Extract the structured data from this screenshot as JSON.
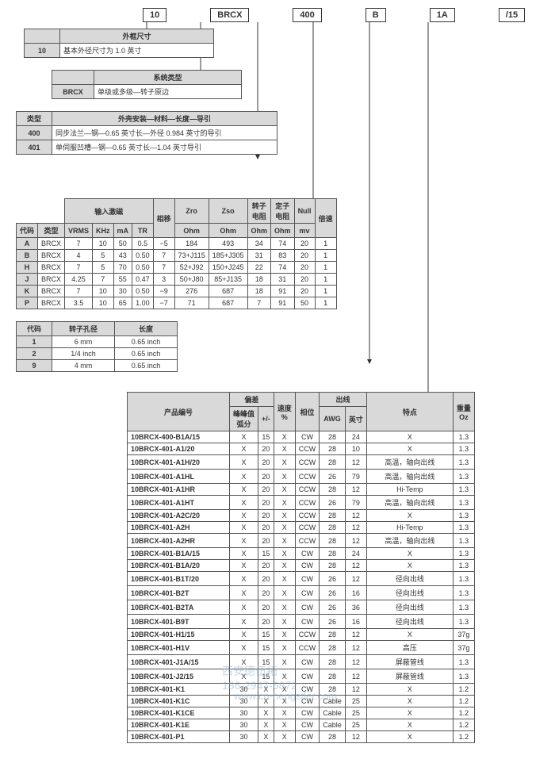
{
  "codes": [
    "10",
    "BRCX",
    "400",
    "B",
    "1A",
    "/15"
  ],
  "t1": {
    "title": "外框尺寸",
    "rows": [
      [
        "10",
        "基本外径尺寸为 1.0 英寸"
      ]
    ]
  },
  "t2": {
    "title": "系统类型",
    "rows": [
      [
        "BRCX",
        "单级或多级—转子原边"
      ]
    ]
  },
  "t3": {
    "title": "外壳安装—材料—长度—导引",
    "rows": [
      [
        "类型",
        ""
      ],
      [
        "400",
        "同步法兰—钢—0.65 英寸长—外径 0.984 英寸的导引"
      ],
      [
        "401",
        "单伺服凹槽—钢—0.65 英寸长—1.04 英寸导引"
      ]
    ]
  },
  "t4": {
    "title": "输入激磁",
    "cols": [
      "代码",
      "类型",
      "VRMS",
      "KHz",
      "mA",
      "TR",
      "相移",
      "Zro Ohm",
      "Zso Ohm",
      "转子电阻 Ohm",
      "定子电阻 Ohm",
      "Null mv",
      "倍速"
    ],
    "rows": [
      [
        "A",
        "BRCX",
        "7",
        "10",
        "50",
        "0.5",
        "−5",
        "184",
        "493",
        "34",
        "74",
        "20",
        "1"
      ],
      [
        "B",
        "BRCX",
        "4",
        "5",
        "43",
        "0.50",
        "7",
        "73+J115",
        "185+J305",
        "31",
        "83",
        "20",
        "1"
      ],
      [
        "H",
        "BRCX",
        "7",
        "5",
        "70",
        "0.50",
        "7",
        "52+J92",
        "150+J245",
        "22",
        "74",
        "20",
        "1"
      ],
      [
        "J",
        "BRCX",
        "4.25",
        "7",
        "55",
        "0.47",
        "3",
        "50+J80",
        "85+J135",
        "18",
        "31",
        "20",
        "1"
      ],
      [
        "K",
        "BRCX",
        "7",
        "10",
        "30",
        "0.50",
        "−9",
        "276",
        "687",
        "18",
        "91",
        "20",
        "1"
      ],
      [
        "P",
        "BRCX",
        "3.5",
        "10",
        "65",
        "1.00",
        "−7",
        "71",
        "687",
        "7",
        "91",
        "50",
        "1"
      ]
    ]
  },
  "t5": {
    "cols": [
      "代码",
      "转子孔径",
      "长度"
    ],
    "rows": [
      [
        "1",
        "6 mm",
        "0.65 inch"
      ],
      [
        "2",
        "1/4 inch",
        "0.65 inch"
      ],
      [
        "9",
        "4 mm",
        "0.65 inch"
      ]
    ]
  },
  "t6": {
    "title": "偏差",
    "cols": [
      "产品编号",
      "峰峰值 弧分",
      "+/-",
      "速度 %",
      "相位",
      "AWG",
      "出线 英寸",
      "特点",
      "重量 Oz"
    ],
    "rows": [
      [
        "10BRCX-400-B1A/15",
        "X",
        "15",
        "X",
        "CW",
        "28",
        "24",
        "X",
        "1.3"
      ],
      [
        "10BRCX-401-A1/20",
        "X",
        "20",
        "X",
        "CCW",
        "28",
        "10",
        "X",
        "1.3"
      ],
      [
        "10BRCX-401-A1H/20",
        "X",
        "20",
        "X",
        "CCW",
        "28",
        "12",
        "高温，轴向出线",
        "1.3"
      ],
      [
        "10BRCX-401-A1HL",
        "X",
        "20",
        "X",
        "CCW",
        "26",
        "79",
        "高温，轴向出线",
        "1.3"
      ],
      [
        "10BRCX-401-A1HR",
        "X",
        "20",
        "X",
        "CCW",
        "28",
        "12",
        "Hi-Temp",
        "1.3"
      ],
      [
        "10BRCX-401-A1HT",
        "X",
        "20",
        "X",
        "CCW",
        "26",
        "79",
        "高温，轴向出线",
        "1.3"
      ],
      [
        "10BRCX-401-A2C/20",
        "X",
        "20",
        "X",
        "CCW",
        "28",
        "12",
        "X",
        "1.3"
      ],
      [
        "10BRCX-401-A2H",
        "X",
        "20",
        "X",
        "CCW",
        "28",
        "12",
        "Hi-Temp",
        "1.3"
      ],
      [
        "10BRCX-401-A2HR",
        "X",
        "20",
        "X",
        "CCW",
        "28",
        "12",
        "高温，轴向出线",
        "1.3"
      ],
      [
        "10BRCX-401-B1A/15",
        "X",
        "15",
        "X",
        "CW",
        "28",
        "24",
        "X",
        "1.3"
      ],
      [
        "10BRCX-401-B1A/20",
        "X",
        "20",
        "X",
        "CW",
        "28",
        "12",
        "X",
        "1.3"
      ],
      [
        "10BRCX-401-B1T/20",
        "X",
        "20",
        "X",
        "CW",
        "26",
        "12",
        "径向出线",
        "1.3"
      ],
      [
        "10BRCX-401-B2T",
        "X",
        "20",
        "X",
        "CW",
        "26",
        "16",
        "径向出线",
        "1.3"
      ],
      [
        "10BRCX-401-B2TA",
        "X",
        "20",
        "X",
        "CW",
        "26",
        "36",
        "径向出线",
        "1.3"
      ],
      [
        "10BRCX-401-B9T",
        "X",
        "20",
        "X",
        "CW",
        "26",
        "16",
        "径向出线",
        "1.3"
      ],
      [
        "10BRCX-401-H1/15",
        "X",
        "15",
        "X",
        "CCW",
        "28",
        "12",
        "X",
        "37g"
      ],
      [
        "10BRCX-401-H1V",
        "X",
        "15",
        "X",
        "CCW",
        "28",
        "12",
        "高压",
        "37g"
      ],
      [
        "10BRCX-401-J1A/15",
        "X",
        "15",
        "X",
        "CW",
        "28",
        "12",
        "屏蔽管线",
        "1.3"
      ],
      [
        "10BRCX-401-J2/15",
        "X",
        "15",
        "X",
        "CW",
        "28",
        "12",
        "屏蔽管线",
        "1.3"
      ],
      [
        "10BRCX-401-K1",
        "30",
        "X",
        "X",
        "CW",
        "28",
        "12",
        "X",
        "1.2"
      ],
      [
        "10BRCX-401-K1C",
        "30",
        "X",
        "X",
        "CW",
        "Cable",
        "25",
        "X",
        "1.2"
      ],
      [
        "10BRCX-401-K1CE",
        "30",
        "X",
        "X",
        "CW",
        "Cable",
        "25",
        "X",
        "1.2"
      ],
      [
        "10BRCX-401-K1E",
        "30",
        "X",
        "X",
        "CW",
        "Cable",
        "25",
        "X",
        "1.2"
      ],
      [
        "10BRCX-401-P1",
        "30",
        "X",
        "X",
        "CW",
        "28",
        "12",
        "X",
        "1.2"
      ]
    ]
  },
  "h": {
    "zro": "Zro",
    "zso": "Zso",
    "rz": "转子",
    "dz": "定子",
    "null": "Null",
    "pc": "偏差",
    "cx": "出线"
  }
}
